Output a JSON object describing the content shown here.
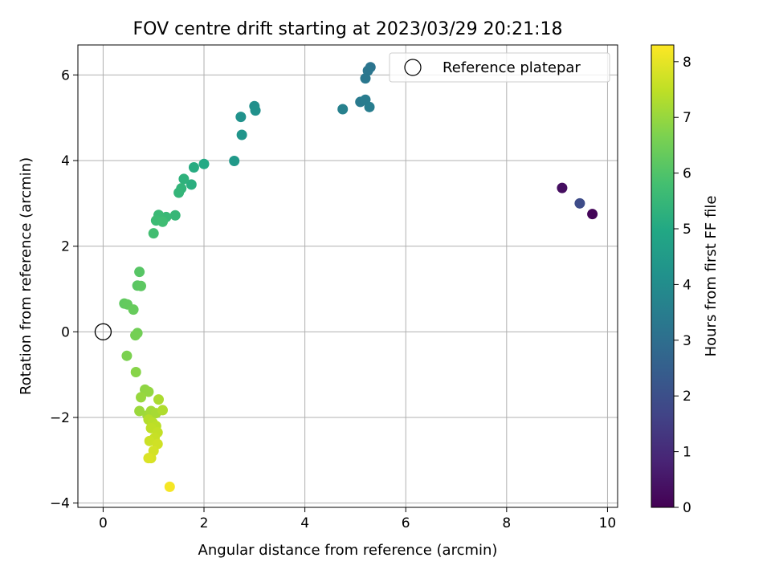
{
  "chart_data": {
    "type": "scatter",
    "title": "FOV centre drift starting at 2023/03/29 20:21:18",
    "xlabel": "Angular distance from reference (arcmin)",
    "ylabel": "Rotation from reference (arcmin)",
    "xlim": [
      -0.5,
      10.2
    ],
    "ylim": [
      -4.1,
      6.7
    ],
    "xticks": [
      0,
      2,
      4,
      6,
      8,
      10
    ],
    "yticks": [
      -4,
      -2,
      0,
      2,
      4,
      6
    ],
    "grid": true,
    "legend": {
      "placement": "top-right",
      "entries": [
        "Reference platepar"
      ]
    },
    "reference_point": {
      "x": 0,
      "y": 0
    },
    "colorbar": {
      "label": "Hours from first FF file",
      "range": [
        0,
        8.3
      ],
      "ticks": [
        0,
        1,
        2,
        3,
        4,
        5,
        6,
        7,
        8
      ],
      "colormap": "viridis"
    },
    "points": [
      {
        "x": 9.7,
        "y": 2.75,
        "c": 0.1
      },
      {
        "x": 9.1,
        "y": 3.36,
        "c": 0.3
      },
      {
        "x": 9.45,
        "y": 3.0,
        "c": 1.9
      },
      {
        "x": 5.3,
        "y": 6.18,
        "c": 3.2
      },
      {
        "x": 5.25,
        "y": 6.1,
        "c": 3.25
      },
      {
        "x": 5.2,
        "y": 5.92,
        "c": 3.3
      },
      {
        "x": 5.1,
        "y": 5.37,
        "c": 3.4
      },
      {
        "x": 5.2,
        "y": 5.42,
        "c": 3.45
      },
      {
        "x": 5.28,
        "y": 5.25,
        "c": 3.5
      },
      {
        "x": 4.75,
        "y": 5.2,
        "c": 3.6
      },
      {
        "x": 3.0,
        "y": 5.27,
        "c": 4.1
      },
      {
        "x": 3.02,
        "y": 5.17,
        "c": 4.15
      },
      {
        "x": 2.73,
        "y": 5.02,
        "c": 4.2
      },
      {
        "x": 2.75,
        "y": 4.6,
        "c": 4.3
      },
      {
        "x": 2.6,
        "y": 3.99,
        "c": 4.45
      },
      {
        "x": 2.0,
        "y": 3.92,
        "c": 5.0
      },
      {
        "x": 1.8,
        "y": 3.84,
        "c": 5.1
      },
      {
        "x": 1.75,
        "y": 3.44,
        "c": 5.2
      },
      {
        "x": 1.6,
        "y": 3.57,
        "c": 5.3
      },
      {
        "x": 1.55,
        "y": 3.35,
        "c": 5.4
      },
      {
        "x": 1.5,
        "y": 3.25,
        "c": 5.45
      },
      {
        "x": 1.43,
        "y": 2.72,
        "c": 5.5
      },
      {
        "x": 1.25,
        "y": 2.68,
        "c": 5.55
      },
      {
        "x": 1.1,
        "y": 2.73,
        "c": 5.6
      },
      {
        "x": 1.05,
        "y": 2.6,
        "c": 5.65
      },
      {
        "x": 1.18,
        "y": 2.57,
        "c": 5.7
      },
      {
        "x": 1.0,
        "y": 2.3,
        "c": 5.75
      },
      {
        "x": 0.72,
        "y": 1.4,
        "c": 6.1
      },
      {
        "x": 0.68,
        "y": 1.08,
        "c": 6.15
      },
      {
        "x": 0.75,
        "y": 1.07,
        "c": 6.2
      },
      {
        "x": 0.42,
        "y": 0.66,
        "c": 6.25
      },
      {
        "x": 0.48,
        "y": 0.64,
        "c": 6.3
      },
      {
        "x": 0.6,
        "y": 0.52,
        "c": 6.35
      },
      {
        "x": 0.68,
        "y": -0.03,
        "c": 6.5
      },
      {
        "x": 0.64,
        "y": -0.08,
        "c": 6.55
      },
      {
        "x": 0.47,
        "y": -0.56,
        "c": 6.65
      },
      {
        "x": 0.65,
        "y": -0.94,
        "c": 6.8
      },
      {
        "x": 0.83,
        "y": -1.35,
        "c": 6.9
      },
      {
        "x": 0.9,
        "y": -1.4,
        "c": 6.95
      },
      {
        "x": 0.75,
        "y": -1.53,
        "c": 7.0
      },
      {
        "x": 0.72,
        "y": -1.85,
        "c": 7.05
      },
      {
        "x": 0.88,
        "y": -1.95,
        "c": 7.1
      },
      {
        "x": 0.95,
        "y": -1.85,
        "c": 7.15
      },
      {
        "x": 1.05,
        "y": -1.9,
        "c": 7.2
      },
      {
        "x": 1.1,
        "y": -1.58,
        "c": 7.25
      },
      {
        "x": 1.18,
        "y": -1.83,
        "c": 7.3
      },
      {
        "x": 0.9,
        "y": -2.05,
        "c": 7.35
      },
      {
        "x": 0.98,
        "y": -2.12,
        "c": 7.4
      },
      {
        "x": 1.05,
        "y": -2.2,
        "c": 7.45
      },
      {
        "x": 0.95,
        "y": -2.25,
        "c": 7.5
      },
      {
        "x": 1.08,
        "y": -2.35,
        "c": 7.55
      },
      {
        "x": 1.02,
        "y": -2.48,
        "c": 7.6
      },
      {
        "x": 0.92,
        "y": -2.55,
        "c": 7.65
      },
      {
        "x": 1.08,
        "y": -2.62,
        "c": 7.7
      },
      {
        "x": 1.0,
        "y": -2.78,
        "c": 7.75
      },
      {
        "x": 0.95,
        "y": -2.95,
        "c": 7.8
      },
      {
        "x": 0.9,
        "y": -2.95,
        "c": 7.85
      },
      {
        "x": 1.32,
        "y": -3.62,
        "c": 8.2
      }
    ]
  }
}
